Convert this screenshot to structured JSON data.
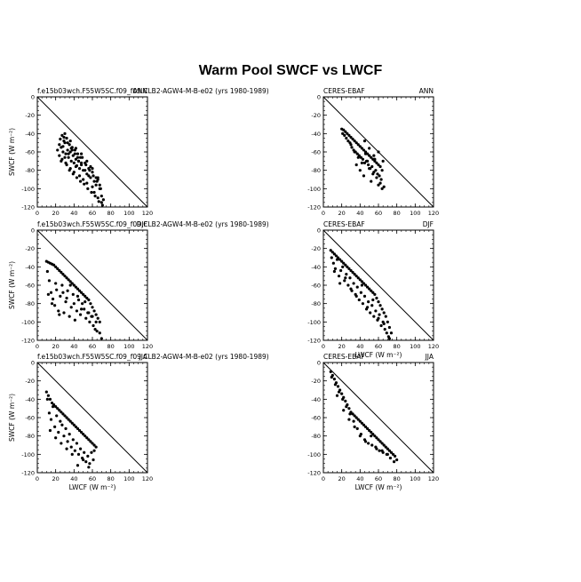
{
  "title": "Warm Pool SWCF vs LWCF",
  "panels": [
    {
      "label": "f.e15b03wch.F55W5SC.f09_f09.CLB2-AGW4-M-B-e02 (yrs 1980-1989)",
      "season": "ANN",
      "xlabel": "",
      "ylabel": "SWCF (W m⁻²)"
    },
    {
      "label": "CERES-EBAF",
      "season": "ANN",
      "xlabel": "",
      "ylabel": ""
    },
    {
      "label": "f.e15b03wch.F55W5SC.f09_f09.CLB2-AGW4-M-B-e02 (yrs 1980-1989)",
      "season": "DJF",
      "xlabel": "",
      "ylabel": "SWCF (W m⁻²)"
    },
    {
      "label": "CERES-EBAF",
      "season": "DJF",
      "xlabel": "LWCF (W m⁻²)",
      "ylabel": ""
    },
    {
      "label": "f.e15b03wch.F55W5SC.f09_f09.CLB2-AGW4-M-B-e02 (yrs 1980-1989)",
      "season": "JJA",
      "xlabel": "LWCF (W m⁻²)",
      "ylabel": "SWCF (W m⁻²)"
    },
    {
      "label": "CERES-EBAF",
      "season": "JJA",
      "xlabel": "LWCF (W m⁻²)",
      "ylabel": ""
    }
  ],
  "chart_data": {
    "type": "scatter",
    "title": "Warm Pool SWCF vs LWCF",
    "xlim": [
      0,
      120
    ],
    "ylim": [
      -120,
      0
    ],
    "xticks": [
      0,
      20,
      40,
      60,
      80,
      100,
      120
    ],
    "yticks": [
      0,
      -20,
      -40,
      -60,
      -80,
      -100,
      -120
    ],
    "reference_line": {
      "x": [
        0,
        120
      ],
      "y": [
        0,
        -120
      ]
    },
    "panels": [
      {
        "season": "ANN",
        "source": "f.e15b03wch.F55W5SC.f09_f09.CLB2-AGW4-M-B-e02 (yrs 1980-1989)",
        "x": [
          22,
          24,
          25,
          26,
          27,
          28,
          29,
          30,
          31,
          32,
          33,
          34,
          35,
          36,
          37,
          38,
          39,
          40,
          41,
          42,
          43,
          44,
          45,
          46,
          47,
          48,
          50,
          52,
          54,
          56,
          58,
          60,
          62,
          64,
          66,
          68,
          70,
          72,
          24,
          26,
          28,
          30,
          32,
          34,
          36,
          38,
          40,
          42,
          44,
          46,
          48,
          50,
          52,
          54,
          56,
          58,
          60,
          62,
          64,
          66,
          68,
          70,
          27,
          29,
          31,
          33,
          35,
          37,
          39,
          41,
          43,
          45,
          47,
          49,
          51,
          53,
          55,
          57,
          59,
          61,
          63,
          65,
          67,
          69,
          71,
          30,
          36,
          42,
          48,
          54,
          60,
          66
        ],
        "y": [
          -58,
          -52,
          -46,
          -55,
          -42,
          -60,
          -48,
          -50,
          -62,
          -45,
          -58,
          -66,
          -52,
          -60,
          -70,
          -55,
          -64,
          -72,
          -58,
          -68,
          -75,
          -62,
          -70,
          -78,
          -66,
          -74,
          -80,
          -72,
          -84,
          -78,
          -88,
          -82,
          -92,
          -96,
          -90,
          -100,
          -108,
          -112,
          -64,
          -70,
          -54,
          -66,
          -74,
          -62,
          -78,
          -58,
          -82,
          -76,
          -66,
          -86,
          -72,
          -90,
          -80,
          -94,
          -86,
          -76,
          -98,
          -104,
          -88,
          -110,
          -96,
          -115,
          -68,
          -44,
          -72,
          -50,
          -80,
          -56,
          -84,
          -62,
          -88,
          -70,
          -92,
          -66,
          -95,
          -74,
          -100,
          -80,
          -104,
          -86,
          -108,
          -92,
          -114,
          -100,
          -118,
          -40,
          -48,
          -56,
          -62,
          -70,
          -78,
          -88
        ]
      },
      {
        "season": "ANN",
        "source": "CERES-EBAF",
        "x": [
          20,
          22,
          24,
          26,
          28,
          30,
          32,
          34,
          36,
          38,
          40,
          42,
          44,
          46,
          48,
          50,
          52,
          54,
          56,
          58,
          60,
          62,
          64,
          21,
          23,
          25,
          27,
          29,
          31,
          33,
          35,
          37,
          39,
          41,
          43,
          45,
          47,
          49,
          51,
          53,
          55,
          57,
          59,
          61,
          63,
          30,
          34,
          38,
          42,
          46,
          50,
          54,
          58,
          62,
          66,
          36,
          40,
          44,
          48,
          52,
          56,
          60,
          64,
          45,
          50,
          55,
          60,
          65
        ],
        "y": [
          -35,
          -36,
          -38,
          -40,
          -42,
          -44,
          -46,
          -48,
          -50,
          -52,
          -54,
          -56,
          -58,
          -60,
          -62,
          -64,
          -66,
          -68,
          -70,
          -72,
          -74,
          -76,
          -80,
          -40,
          -42,
          -45,
          -48,
          -50,
          -55,
          -58,
          -60,
          -62,
          -64,
          -66,
          -68,
          -72,
          -70,
          -74,
          -78,
          -76,
          -82,
          -80,
          -84,
          -86,
          -90,
          -52,
          -60,
          -66,
          -72,
          -62,
          -78,
          -84,
          -88,
          -94,
          -98,
          -74,
          -80,
          -86,
          -70,
          -92,
          -68,
          -96,
          -100,
          -48,
          -56,
          -64,
          -60,
          -70
        ]
      },
      {
        "season": "DJF",
        "source": "f.e15b03wch.F55W5SC.f09_f09.CLB2-AGW4-M-B-e02 (yrs 1980-1989)",
        "x": [
          10,
          12,
          14,
          16,
          18,
          20,
          22,
          24,
          26,
          28,
          30,
          32,
          34,
          36,
          38,
          40,
          42,
          44,
          46,
          48,
          50,
          52,
          54,
          56,
          58,
          60,
          62,
          64,
          66,
          68,
          11,
          13,
          15,
          17,
          19,
          21,
          23,
          25,
          27,
          29,
          31,
          33,
          35,
          37,
          39,
          41,
          43,
          45,
          47,
          49,
          51,
          53,
          55,
          57,
          59,
          61,
          63,
          65,
          12,
          16,
          20,
          24,
          28,
          32,
          36,
          40,
          44,
          48,
          52,
          56,
          60,
          64,
          68,
          70
        ],
        "y": [
          -34,
          -35,
          -36,
          -37,
          -38,
          -40,
          -42,
          -44,
          -46,
          -48,
          -50,
          -52,
          -54,
          -56,
          -58,
          -60,
          -62,
          -64,
          -66,
          -68,
          -70,
          -72,
          -74,
          -76,
          -80,
          -84,
          -88,
          -92,
          -96,
          -100,
          -45,
          -55,
          -68,
          -75,
          -82,
          -65,
          -88,
          -72,
          -60,
          -90,
          -78,
          -66,
          -94,
          -84,
          -70,
          -98,
          -88,
          -76,
          -92,
          -80,
          -86,
          -96,
          -90,
          -100,
          -94,
          -104,
          -108,
          -110,
          -70,
          -80,
          -58,
          -92,
          -68,
          -74,
          -60,
          -80,
          -72,
          -86,
          -78,
          -90,
          -94,
          -100,
          -112,
          -118
        ]
      },
      {
        "season": "DJF",
        "source": "CERES-EBAF",
        "x": [
          8,
          10,
          12,
          14,
          16,
          18,
          20,
          22,
          24,
          26,
          28,
          30,
          32,
          34,
          36,
          38,
          40,
          42,
          44,
          46,
          48,
          50,
          52,
          54,
          56,
          58,
          60,
          62,
          64,
          66,
          68,
          70,
          72,
          74,
          9,
          11,
          13,
          15,
          17,
          19,
          21,
          23,
          25,
          27,
          29,
          31,
          33,
          35,
          37,
          39,
          41,
          43,
          45,
          47,
          49,
          51,
          53,
          55,
          57,
          59,
          61,
          63,
          65,
          67,
          69,
          71,
          12,
          18,
          24,
          30,
          36,
          42,
          48,
          54,
          60,
          66,
          72
        ],
        "y": [
          -22,
          -24,
          -26,
          -28,
          -30,
          -32,
          -34,
          -36,
          -38,
          -40,
          -42,
          -44,
          -46,
          -48,
          -50,
          -52,
          -54,
          -56,
          -58,
          -60,
          -62,
          -64,
          -66,
          -68,
          -70,
          -74,
          -78,
          -82,
          -86,
          -90,
          -94,
          -100,
          -106,
          -112,
          -30,
          -36,
          -42,
          -32,
          -50,
          -44,
          -40,
          -55,
          -48,
          -60,
          -52,
          -66,
          -58,
          -70,
          -62,
          -76,
          -68,
          -80,
          -72,
          -86,
          -78,
          -90,
          -82,
          -94,
          -88,
          -98,
          -92,
          -104,
          -100,
          -108,
          -112,
          -116,
          -45,
          -58,
          -52,
          -64,
          -72,
          -60,
          -84,
          -76,
          -96,
          -102,
          -118
        ]
      },
      {
        "season": "JJA",
        "source": "f.e15b03wch.F55W5SC.f09_f09.CLB2-AGW4-M-B-e02 (yrs 1980-1989)",
        "x": [
          10,
          12,
          14,
          16,
          18,
          20,
          22,
          24,
          26,
          28,
          30,
          32,
          34,
          36,
          38,
          40,
          42,
          44,
          46,
          48,
          50,
          52,
          54,
          56,
          58,
          60,
          62,
          64,
          11,
          13,
          15,
          17,
          19,
          21,
          23,
          25,
          27,
          29,
          31,
          33,
          35,
          37,
          39,
          41,
          43,
          45,
          47,
          49,
          51,
          53,
          55,
          57,
          59,
          61,
          14,
          20,
          26,
          32,
          38,
          44,
          50,
          56,
          62
        ],
        "y": [
          -32,
          -36,
          -40,
          -44,
          -46,
          -48,
          -50,
          -52,
          -54,
          -56,
          -58,
          -60,
          -62,
          -64,
          -66,
          -68,
          -70,
          -72,
          -74,
          -76,
          -78,
          -80,
          -82,
          -84,
          -86,
          -88,
          -90,
          -92,
          -40,
          -55,
          -62,
          -48,
          -70,
          -58,
          -76,
          -64,
          -68,
          -80,
          -72,
          -86,
          -78,
          -92,
          -84,
          -96,
          -88,
          -100,
          -94,
          -104,
          -98,
          -108,
          -102,
          -110,
          -98,
          -106,
          -74,
          -82,
          -88,
          -94,
          -100,
          -112,
          -106,
          -114,
          -96
        ]
      },
      {
        "season": "JJA",
        "source": "CERES-EBAF",
        "x": [
          8,
          10,
          12,
          14,
          16,
          18,
          20,
          22,
          24,
          26,
          28,
          30,
          32,
          34,
          36,
          38,
          40,
          42,
          44,
          46,
          48,
          50,
          52,
          54,
          56,
          58,
          60,
          62,
          64,
          66,
          68,
          70,
          72,
          74,
          76,
          78,
          80,
          9,
          13,
          17,
          21,
          25,
          29,
          33,
          37,
          41,
          45,
          49,
          53,
          57,
          61,
          65,
          69,
          73,
          77,
          15,
          22,
          28,
          34,
          40,
          46,
          52,
          58,
          64,
          70
        ],
        "y": [
          -10,
          -14,
          -18,
          -22,
          -26,
          -30,
          -34,
          -38,
          -42,
          -46,
          -50,
          -54,
          -56,
          -58,
          -60,
          -62,
          -64,
          -66,
          -68,
          -70,
          -72,
          -74,
          -76,
          -78,
          -80,
          -82,
          -84,
          -86,
          -88,
          -90,
          -92,
          -94,
          -96,
          -98,
          -100,
          -102,
          -106,
          -16,
          -24,
          -32,
          -40,
          -48,
          -56,
          -64,
          -72,
          -78,
          -84,
          -88,
          -90,
          -92,
          -96,
          -98,
          -100,
          -104,
          -108,
          -36,
          -52,
          -62,
          -70,
          -80,
          -86,
          -80,
          -94,
          -96,
          -100
        ]
      }
    ]
  }
}
